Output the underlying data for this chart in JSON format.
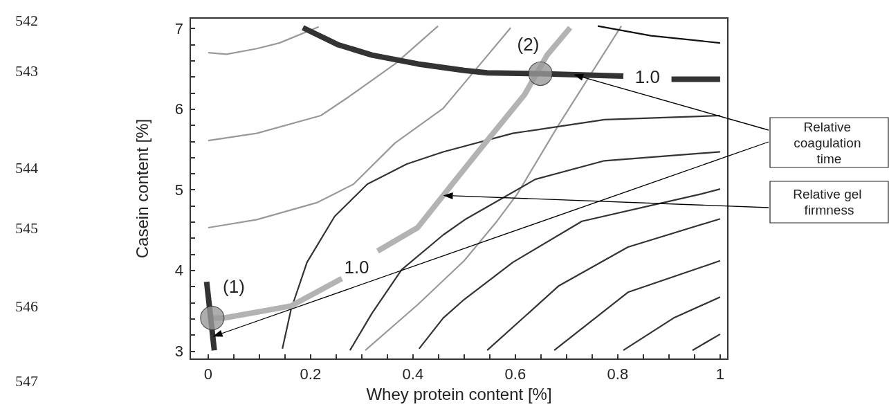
{
  "chart_data": {
    "type": "line",
    "xlabel": "Whey protein content [%]",
    "ylabel": "Casein content [%]",
    "xlim": [
      -0.035,
      1.015
    ],
    "ylim": [
      2.9,
      7.13
    ],
    "xticks": [
      0,
      {
        "value": 0.05,
        "label": null
      },
      {
        "value": 0.1,
        "label": null
      },
      {
        "value": 0.15,
        "label": null
      },
      0.2,
      {
        "value": 0.25,
        "label": null
      },
      {
        "value": 0.3,
        "label": null
      },
      {
        "value": 0.35,
        "label": null
      },
      0.4,
      {
        "value": 0.45,
        "label": null
      },
      {
        "value": 0.5,
        "label": null
      },
      {
        "value": 0.55,
        "label": null
      },
      0.6,
      {
        "value": 0.65,
        "label": null
      },
      {
        "value": 0.7,
        "label": null
      },
      {
        "value": 0.75,
        "label": null
      },
      0.8,
      {
        "value": 0.85,
        "label": null
      },
      {
        "value": 0.9,
        "label": null
      },
      {
        "value": 0.95,
        "label": null
      },
      1
    ],
    "yticks": [
      3,
      {
        "value": 3.2,
        "label": null
      },
      {
        "value": 3.4,
        "label": null
      },
      {
        "value": 3.6,
        "label": null
      },
      {
        "value": 3.8,
        "label": null
      },
      4,
      {
        "value": 4.2,
        "label": null
      },
      {
        "value": 4.4,
        "label": null
      },
      {
        "value": 4.6,
        "label": null
      },
      {
        "value": 4.8,
        "label": null
      },
      5,
      {
        "value": 5.2,
        "label": null
      },
      {
        "value": 5.4,
        "label": null
      },
      {
        "value": 5.6,
        "label": null
      },
      {
        "value": 5.8,
        "label": null
      },
      6,
      {
        "value": 6.2,
        "label": null
      },
      {
        "value": 6.4,
        "label": null
      },
      {
        "value": 6.6,
        "label": null
      },
      {
        "value": 6.8,
        "label": null
      },
      7
    ],
    "grid": false,
    "marker": "none",
    "line_style": "solid",
    "series": [
      {
        "color": "#999999",
        "x": [
          0,
          0.036,
          0.095,
          0.139,
          0.216
        ],
        "values": [
          6.7,
          6.68,
          6.75,
          6.82,
          7.02
        ]
      },
      {
        "color": "#999999",
        "x": [
          0,
          0.095,
          0.22,
          0.274,
          0.365,
          0.449
        ],
        "values": [
          5.61,
          5.7,
          5.92,
          6.15,
          6.56,
          7.03
        ]
      },
      {
        "color": "#999999",
        "x": [
          0,
          0.095,
          0.212,
          0.247,
          0.284,
          0.365,
          0.459,
          0.5,
          0.591
        ],
        "values": [
          4.53,
          4.63,
          4.84,
          4.95,
          5.07,
          5.58,
          6.01,
          6.32,
          7.01
        ]
      },
      {
        "color": "#999999",
        "x": [
          0.307,
          0.41,
          0.5,
          0.564,
          0.604,
          0.685,
          0.807
        ],
        "values": [
          3.01,
          3.58,
          4.12,
          4.61,
          4.95,
          5.81,
          7.03
        ]
      },
      {
        "color": "#b3b3b3",
        "x": [
          0.008,
          0.031,
          0.162,
          0.261,
          null,
          0.331,
          0.409,
          0.459,
          0.541,
          0.618,
          0.662,
          0.707
        ],
        "values": [
          3.41,
          3.41,
          3.56,
          3.9,
          null,
          4.24,
          4.53,
          4.93,
          5.58,
          6.18,
          6.67,
          7.01
        ]
      },
      {
        "color": "#333333",
        "x": [
          0.145,
          0.162,
          0.193,
          0.247,
          0.311,
          0.388,
          0.459,
          0.595,
          0.774,
          1.0
        ],
        "values": [
          3.03,
          3.52,
          4.1,
          4.67,
          5.07,
          5.32,
          5.47,
          5.7,
          5.87,
          5.92
        ]
      },
      {
        "color": "#333333",
        "x": [
          0.277,
          0.32,
          0.378,
          0.459,
          0.504,
          0.639,
          0.774,
          1.0
        ],
        "values": [
          3.01,
          3.47,
          4.01,
          4.44,
          4.64,
          5.13,
          5.36,
          5.47
        ]
      },
      {
        "color": "#333333",
        "x": [
          0.412,
          0.459,
          0.5,
          0.595,
          0.73,
          0.964,
          1.0
        ],
        "values": [
          3.03,
          3.41,
          3.64,
          4.1,
          4.61,
          4.95,
          5.01
        ]
      },
      {
        "color": "#333333",
        "x": [
          0.545,
          0.685,
          0.82,
          1.0
        ],
        "values": [
          3.01,
          3.81,
          4.29,
          4.64
        ]
      },
      {
        "color": "#333333",
        "x": [
          0.676,
          0.82,
          1.0
        ],
        "values": [
          3.01,
          3.73,
          4.12
        ]
      },
      {
        "color": "#333333",
        "x": [
          0.811,
          0.909,
          1.0
        ],
        "values": [
          3.01,
          3.41,
          3.67
        ]
      },
      {
        "color": "#333333",
        "x": [
          0.946,
          1.0
        ],
        "values": [
          3.01,
          3.21
        ]
      },
      {
        "color": "#111111",
        "x": [
          0.761,
          0.865,
          1.0
        ],
        "values": [
          7.03,
          6.91,
          6.82
        ]
      },
      {
        "color": "#333333",
        "x": [
          -0.003,
          0.012,
          null,
          0.185,
          0.253,
          0.32,
          0.41,
          0.5,
          0.545,
          0.649,
          0.811,
          null,
          0.905,
          1.0
        ],
        "values": [
          3.86,
          3.01,
          null,
          7.01,
          6.8,
          6.67,
          6.56,
          6.48,
          6.45,
          6.44,
          6.41,
          null,
          6.37,
          6.37
        ]
      },
      {
        "type": "scatter",
        "marker": "circle",
        "color": "#999999",
        "x": [
          0.008,
          0.649
        ],
        "values": [
          3.41,
          6.44
        ]
      }
    ],
    "annotations": [
      "542",
      "543",
      "544",
      "545",
      "546",
      "547",
      {
        "text": "(1)",
        "x": 0.05,
        "y": 3.8
      },
      {
        "text": "(2)",
        "x": 0.625,
        "y": 6.8
      },
      {
        "text": "1.0",
        "x": 0.29,
        "y": 4.04
      },
      {
        "text": "1.0",
        "x": 0.858,
        "y": 6.4
      },
      "Relative coagulation time",
      "Relative gel firmness"
    ]
  }
}
